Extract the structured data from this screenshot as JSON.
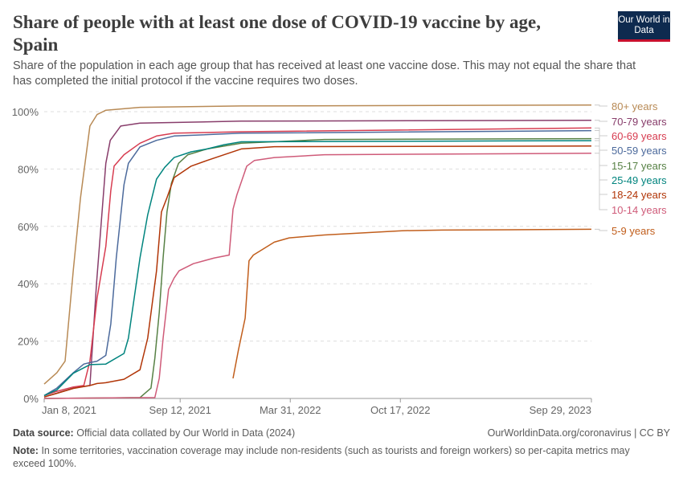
{
  "header": {
    "title": "Share of people with at least one dose of COVID-19 vaccine by age, Spain",
    "subtitle": "Share of the population in each age group that has received at least one vaccine dose. This may not equal the share that has completed the initial protocol if the vaccine requires two doses.",
    "logo": "Our World in Data"
  },
  "footer": {
    "source_label": "Data source:",
    "source": "Official data collated by Our World in Data (2024)",
    "link": "OurWorldinData.org/coronavirus | CC BY",
    "note_label": "Note:",
    "note": "In some territories, vaccination coverage may include non-residents (such as tourists and foreign workers) so per-capita metrics may exceed 100%."
  },
  "chart_data": {
    "type": "line",
    "title": "Share of people with at least one dose of COVID-19 vaccine by age, Spain",
    "xlim": [
      "2021-01-08",
      "2023-09-29"
    ],
    "ylim": [
      0,
      100
    ],
    "grid": true,
    "legend": "right (end labels)",
    "x_ticks": [
      "Jan 8, 2021",
      "Sep 12, 2021",
      "Mar 31, 2022",
      "Oct 17, 2022",
      "Sep 29, 2023"
    ],
    "x_tick_dates": [
      "2021-01-08",
      "2021-09-12",
      "2022-03-31",
      "2022-10-17",
      "2023-09-29"
    ],
    "y_ticks": [
      "0%",
      "20%",
      "40%",
      "60%",
      "80%",
      "100%"
    ],
    "y_tick_values": [
      0,
      20,
      40,
      60,
      80,
      100
    ],
    "series": [
      {
        "name": "80+ years",
        "color": "#b88a55",
        "points": [
          [
            "2021-01-08",
            5
          ],
          [
            "2021-01-31",
            9
          ],
          [
            "2021-02-15",
            13
          ],
          [
            "2021-03-02",
            45
          ],
          [
            "2021-03-15",
            70
          ],
          [
            "2021-04-01",
            95
          ],
          [
            "2021-04-14",
            99
          ],
          [
            "2021-04-30",
            100.5
          ],
          [
            "2021-07-01",
            101.5
          ],
          [
            "2022-01-01",
            102
          ],
          [
            "2023-09-29",
            102.3
          ]
        ]
      },
      {
        "name": "70-79 years",
        "color": "#883d6b",
        "points": [
          [
            "2021-01-08",
            0.5
          ],
          [
            "2021-03-02",
            3.6
          ],
          [
            "2021-04-01",
            4.5
          ],
          [
            "2021-04-13",
            40
          ],
          [
            "2021-04-30",
            82
          ],
          [
            "2021-05-08",
            90
          ],
          [
            "2021-05-27",
            95
          ],
          [
            "2021-07-01",
            96
          ],
          [
            "2022-01-01",
            96.7
          ],
          [
            "2023-09-29",
            97
          ]
        ]
      },
      {
        "name": "60-69 years",
        "color": "#d73c50",
        "points": [
          [
            "2021-01-08",
            1
          ],
          [
            "2021-01-31",
            2.5
          ],
          [
            "2021-03-02",
            4
          ],
          [
            "2021-03-21",
            4.5
          ],
          [
            "2021-04-01",
            13
          ],
          [
            "2021-04-14",
            35
          ],
          [
            "2021-04-30",
            53
          ],
          [
            "2021-05-09",
            72.5
          ],
          [
            "2021-05-15",
            81
          ],
          [
            "2021-06-02",
            85
          ],
          [
            "2021-07-01",
            89
          ],
          [
            "2021-07-31",
            91.5
          ],
          [
            "2021-09-01",
            92.5
          ],
          [
            "2022-01-01",
            93
          ],
          [
            "2023-09-29",
            94.3
          ]
        ]
      },
      {
        "name": "50-59 years",
        "color": "#4c6a9c",
        "points": [
          [
            "2021-01-08",
            1
          ],
          [
            "2021-01-31",
            3.6
          ],
          [
            "2021-03-02",
            9
          ],
          [
            "2021-03-21",
            12
          ],
          [
            "2021-04-01",
            12.5
          ],
          [
            "2021-04-14",
            13
          ],
          [
            "2021-04-30",
            15
          ],
          [
            "2021-05-09",
            26
          ],
          [
            "2021-05-19",
            49
          ],
          [
            "2021-06-02",
            74.5
          ],
          [
            "2021-06-10",
            82
          ],
          [
            "2021-07-01",
            87.7
          ],
          [
            "2021-07-31",
            90
          ],
          [
            "2021-09-01",
            91.5
          ],
          [
            "2022-01-01",
            92.5
          ],
          [
            "2023-09-29",
            93.4
          ]
        ]
      },
      {
        "name": "15-17 years",
        "color": "#578145",
        "points": [
          [
            "2021-01-08",
            0
          ],
          [
            "2021-07-01",
            0.3
          ],
          [
            "2021-07-21",
            3.6
          ],
          [
            "2021-07-28",
            14
          ],
          [
            "2021-08-05",
            30
          ],
          [
            "2021-08-12",
            49
          ],
          [
            "2021-08-19",
            65
          ],
          [
            "2021-08-27",
            75
          ],
          [
            "2021-09-09",
            82
          ],
          [
            "2021-09-26",
            85
          ],
          [
            "2021-10-31",
            87
          ],
          [
            "2022-01-01",
            89
          ],
          [
            "2022-06-01",
            90.3
          ],
          [
            "2023-09-29",
            90.6
          ]
        ]
      },
      {
        "name": "25-49 years",
        "color": "#00847e",
        "points": [
          [
            "2021-01-08",
            1
          ],
          [
            "2021-01-31",
            3
          ],
          [
            "2021-03-02",
            8.8
          ],
          [
            "2021-04-01",
            11.8
          ],
          [
            "2021-04-30",
            12
          ],
          [
            "2021-06-02",
            15.7
          ],
          [
            "2021-06-10",
            21
          ],
          [
            "2021-07-01",
            49
          ],
          [
            "2021-07-15",
            64
          ],
          [
            "2021-07-31",
            76.5
          ],
          [
            "2021-08-15",
            80.6
          ],
          [
            "2021-09-01",
            84
          ],
          [
            "2021-10-02",
            86
          ],
          [
            "2021-10-31",
            87
          ],
          [
            "2021-12-01",
            88.5
          ],
          [
            "2022-01-01",
            89.5
          ],
          [
            "2023-09-29",
            89.9
          ]
        ]
      },
      {
        "name": "18-24 years",
        "color": "#b13507",
        "points": [
          [
            "2021-01-08",
            0.5
          ],
          [
            "2021-01-31",
            1.8
          ],
          [
            "2021-03-02",
            3.5
          ],
          [
            "2021-04-01",
            4.5
          ],
          [
            "2021-04-14",
            5.2
          ],
          [
            "2021-04-30",
            5.5
          ],
          [
            "2021-06-02",
            6.7
          ],
          [
            "2021-07-01",
            10
          ],
          [
            "2021-07-15",
            21
          ],
          [
            "2021-07-31",
            44.5
          ],
          [
            "2021-08-09",
            65
          ],
          [
            "2021-08-19",
            70
          ],
          [
            "2021-09-01",
            77
          ],
          [
            "2021-10-02",
            81
          ],
          [
            "2021-10-31",
            83
          ],
          [
            "2021-12-01",
            85
          ],
          [
            "2022-01-01",
            87
          ],
          [
            "2022-03-02",
            87.8
          ],
          [
            "2023-09-29",
            88
          ]
        ]
      },
      {
        "name": "10-14 years",
        "color": "#cf5b79",
        "points": [
          [
            "2021-01-08",
            0
          ],
          [
            "2021-07-28",
            0.3
          ],
          [
            "2021-08-05",
            7
          ],
          [
            "2021-08-12",
            21
          ],
          [
            "2021-08-22",
            38
          ],
          [
            "2021-09-01",
            42
          ],
          [
            "2021-09-10",
            44.5
          ],
          [
            "2021-10-06",
            47
          ],
          [
            "2021-11-13",
            49
          ],
          [
            "2021-12-10",
            50
          ],
          [
            "2021-12-17",
            66
          ],
          [
            "2021-12-24",
            71
          ],
          [
            "2022-01-11",
            81
          ],
          [
            "2022-01-25",
            83
          ],
          [
            "2022-03-02",
            84
          ],
          [
            "2022-06-01",
            85
          ],
          [
            "2023-09-29",
            85.5
          ]
        ]
      },
      {
        "name": "5-9 years",
        "color": "#c15e1c",
        "points": [
          [
            "2021-12-17",
            7
          ],
          [
            "2021-12-27",
            17
          ],
          [
            "2022-01-08",
            28
          ],
          [
            "2022-01-15",
            48
          ],
          [
            "2022-01-23",
            50
          ],
          [
            "2022-02-13",
            52.5
          ],
          [
            "2022-03-02",
            54.5
          ],
          [
            "2022-03-29",
            56
          ],
          [
            "2022-06-01",
            57
          ],
          [
            "2022-10-20",
            58.5
          ],
          [
            "2023-01-01",
            58.7
          ],
          [
            "2023-09-29",
            59
          ]
        ]
      }
    ]
  }
}
